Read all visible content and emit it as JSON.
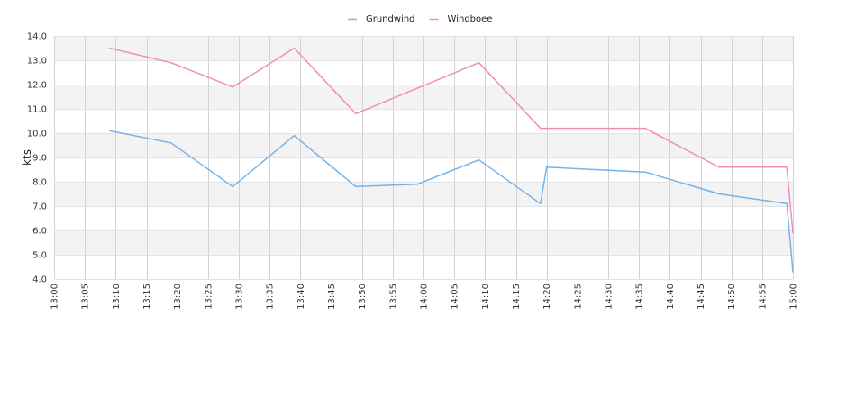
{
  "chart_data": {
    "type": "line",
    "title": "",
    "xlabel": "",
    "ylabel": "kts",
    "ylim": [
      4.0,
      14.0
    ],
    "y_ticks": [
      "4.0",
      "5.0",
      "6.0",
      "7.0",
      "8.0",
      "9.0",
      "10.0",
      "11.0",
      "12.0",
      "13.0",
      "14.0"
    ],
    "x_range": [
      "13:00",
      "15:00"
    ],
    "x_ticks": [
      "13:00",
      "13:05",
      "13:10",
      "13:15",
      "13:20",
      "13:25",
      "13:30",
      "13:35",
      "13:40",
      "13:45",
      "13:50",
      "13:55",
      "14:00",
      "14:05",
      "14:10",
      "14:15",
      "14:20",
      "14:25",
      "14:30",
      "14:35",
      "14:40",
      "14:45",
      "14:50",
      "14:55",
      "15:00"
    ],
    "grid": true,
    "legend_position": "top-center",
    "series": [
      {
        "name": "Grundwind",
        "color": "#74b3ea",
        "points": [
          {
            "x": "13:09",
            "y": 10.1
          },
          {
            "x": "13:19",
            "y": 9.6
          },
          {
            "x": "13:29",
            "y": 7.8
          },
          {
            "x": "13:39",
            "y": 9.9
          },
          {
            "x": "13:49",
            "y": 7.8
          },
          {
            "x": "13:59",
            "y": 7.9
          },
          {
            "x": "14:09",
            "y": 8.9
          },
          {
            "x": "14:19",
            "y": 7.1
          },
          {
            "x": "14:20",
            "y": 8.6
          },
          {
            "x": "14:36",
            "y": 8.4
          },
          {
            "x": "14:48",
            "y": 7.5
          },
          {
            "x": "14:59",
            "y": 7.1
          },
          {
            "x": "15:00",
            "y": 4.3
          }
        ]
      },
      {
        "name": "Windboee",
        "color": "#f08dbd",
        "points": [
          {
            "x": "13:09",
            "y": 13.5
          },
          {
            "x": "13:19",
            "y": 12.9
          },
          {
            "x": "13:29",
            "y": 11.9
          },
          {
            "x": "13:39",
            "y": 13.5
          },
          {
            "x": "13:49",
            "y": 10.8
          },
          {
            "x": "14:09",
            "y": 12.9
          },
          {
            "x": "14:19",
            "y": 10.2
          },
          {
            "x": "14:36",
            "y": 10.2
          },
          {
            "x": "14:48",
            "y": 8.6
          },
          {
            "x": "14:59",
            "y": 8.6
          },
          {
            "x": "15:00",
            "y": 5.9
          }
        ]
      }
    ]
  }
}
